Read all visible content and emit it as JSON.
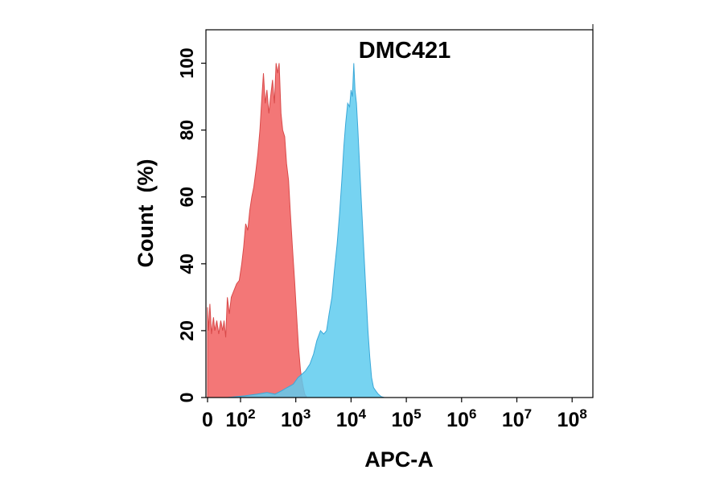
{
  "chart_data": {
    "type": "area",
    "title": "DMC421",
    "xlabel": "APC-A",
    "ylabel": "Count  (%)",
    "x_scale": "biexponential",
    "xlim": [
      0,
      100000000
    ],
    "ylim": [
      0,
      110
    ],
    "x_ticks": [
      {
        "value": 0,
        "base": "0",
        "exp": ""
      },
      {
        "value": 100,
        "base": "10",
        "exp": "2"
      },
      {
        "value": 1000,
        "base": "10",
        "exp": "3"
      },
      {
        "value": 10000,
        "base": "10",
        "exp": "4"
      },
      {
        "value": 100000,
        "base": "10",
        "exp": "5"
      },
      {
        "value": 1000000,
        "base": "10",
        "exp": "6"
      },
      {
        "value": 10000000,
        "base": "10",
        "exp": "7"
      },
      {
        "value": 100000000,
        "base": "10",
        "exp": "8"
      }
    ],
    "y_ticks": [
      "0",
      "20",
      "40",
      "60",
      "80",
      "100"
    ],
    "grid": false,
    "legend": "none",
    "series": [
      {
        "color": "#f26b6b",
        "stroke": "#d94a4a",
        "points": [
          [
            0,
            0
          ],
          [
            0,
            27
          ],
          [
            3,
            20
          ],
          [
            7,
            28
          ],
          [
            12,
            19
          ],
          [
            18,
            24
          ],
          [
            22,
            20
          ],
          [
            28,
            23
          ],
          [
            34,
            19
          ],
          [
            40,
            23
          ],
          [
            46,
            20
          ],
          [
            50,
            23
          ],
          [
            55,
            18
          ],
          [
            60,
            30
          ],
          [
            66,
            25
          ],
          [
            72,
            30
          ],
          [
            80,
            32
          ],
          [
            88,
            34
          ],
          [
            96,
            35
          ],
          [
            105,
            40
          ],
          [
            114,
            45
          ],
          [
            124,
            52
          ],
          [
            135,
            50
          ],
          [
            147,
            56
          ],
          [
            160,
            60
          ],
          [
            174,
            63
          ],
          [
            190,
            68
          ],
          [
            206,
            73
          ],
          [
            224,
            80
          ],
          [
            244,
            90
          ],
          [
            260,
            97
          ],
          [
            280,
            88
          ],
          [
            300,
            92
          ],
          [
            325,
            85
          ],
          [
            350,
            90
          ],
          [
            380,
            95
          ],
          [
            410,
            88
          ],
          [
            440,
            100
          ],
          [
            470,
            97
          ],
          [
            500,
            100
          ],
          [
            540,
            85
          ],
          [
            580,
            80
          ],
          [
            630,
            78
          ],
          [
            680,
            70
          ],
          [
            740,
            65
          ],
          [
            800,
            55
          ],
          [
            870,
            45
          ],
          [
            950,
            35
          ],
          [
            1030,
            25
          ],
          [
            1120,
            15
          ],
          [
            1220,
            8
          ],
          [
            1330,
            4
          ],
          [
            1450,
            1
          ],
          [
            1600,
            0
          ]
        ]
      },
      {
        "color": "#5ecbef",
        "stroke": "#3aa8d8",
        "points": [
          [
            60,
            0
          ],
          [
            120,
            0.5
          ],
          [
            200,
            1
          ],
          [
            300,
            1.5
          ],
          [
            420,
            1
          ],
          [
            550,
            2
          ],
          [
            700,
            3
          ],
          [
            900,
            4
          ],
          [
            1100,
            6
          ],
          [
            1300,
            7
          ],
          [
            1500,
            8
          ],
          [
            1800,
            10
          ],
          [
            2100,
            13
          ],
          [
            2400,
            17
          ],
          [
            2800,
            20
          ],
          [
            3200,
            19
          ],
          [
            3600,
            20
          ],
          [
            4000,
            25
          ],
          [
            4500,
            30
          ],
          [
            5000,
            38
          ],
          [
            5600,
            46
          ],
          [
            6200,
            55
          ],
          [
            6800,
            65
          ],
          [
            7400,
            75
          ],
          [
            8000,
            82
          ],
          [
            8700,
            88
          ],
          [
            9400,
            87
          ],
          [
            10000,
            92
          ],
          [
            10600,
            90
          ],
          [
            11200,
            100
          ],
          [
            11800,
            92
          ],
          [
            12500,
            88
          ],
          [
            13300,
            80
          ],
          [
            14200,
            70
          ],
          [
            15200,
            60
          ],
          [
            16300,
            50
          ],
          [
            17500,
            40
          ],
          [
            18800,
            30
          ],
          [
            20200,
            20
          ],
          [
            21800,
            12
          ],
          [
            23500,
            6
          ],
          [
            25500,
            3
          ],
          [
            28000,
            2
          ],
          [
            31000,
            1
          ],
          [
            35000,
            0.3
          ],
          [
            40000,
            0
          ]
        ]
      }
    ]
  }
}
